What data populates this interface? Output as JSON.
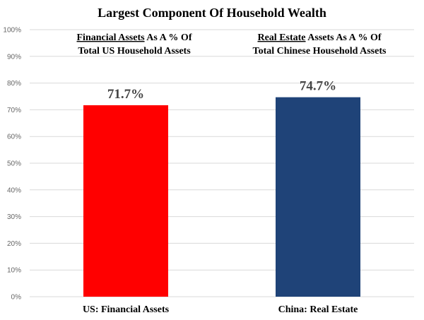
{
  "chart_data": {
    "type": "bar",
    "title": "Largest Component Of  Household Wealth",
    "categories": [
      "US: Financial Assets",
      "China: Real Estate"
    ],
    "values": [
      71.7,
      74.7
    ],
    "value_labels": [
      "71.7%",
      "74.7%"
    ],
    "bar_colors": [
      "#ff0000",
      "#1f4378"
    ],
    "ylim": [
      0,
      100
    ],
    "y_ticks": [
      "0%",
      "10%",
      "20%",
      "30%",
      "40%",
      "50%",
      "60%",
      "70%",
      "80%",
      "90%",
      "100%"
    ],
    "grid": true,
    "annotations": [
      {
        "underlined": "Financial Assets",
        "rest": " As A % Of",
        "line2": "Total US Household Assets"
      },
      {
        "underlined": "Real Estate",
        "rest": " Assets As A % Of",
        "line2": "Total Chinese Household Assets"
      }
    ]
  }
}
